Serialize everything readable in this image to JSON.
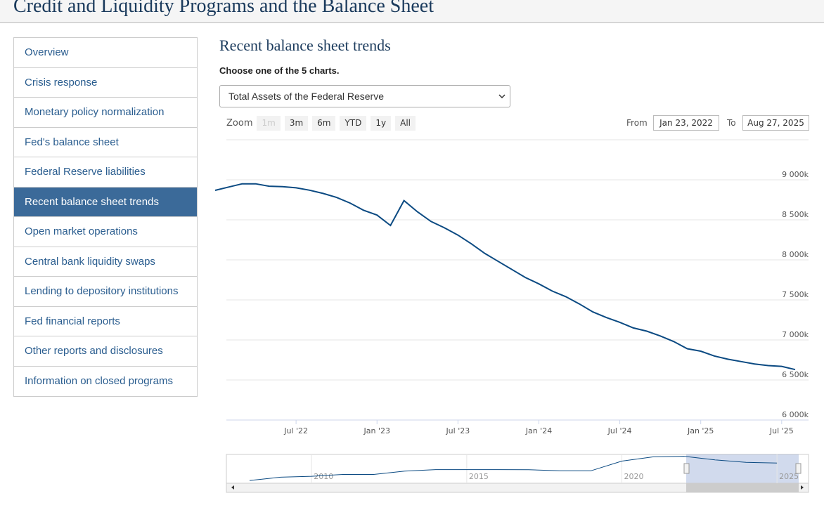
{
  "header": {
    "title": "Credit and Liquidity Programs and the Balance Sheet"
  },
  "nav": {
    "items": [
      "Overview",
      "Crisis response",
      "Monetary policy normalization",
      "Fed's balance sheet",
      "Federal Reserve liabilities",
      "Recent balance sheet trends",
      "Open market operations",
      "Central bank liquidity swaps",
      "Lending to depository institutions",
      "Fed financial reports",
      "Other reports and disclosures",
      "Information on closed programs"
    ],
    "active": 5
  },
  "section": {
    "title": "Recent balance sheet trends",
    "prompt": "Choose one of the 5 charts.",
    "select": "Total Assets of the Federal Reserve"
  },
  "range_selector": {
    "zoom_label": "Zoom",
    "buttons": [
      "1m",
      "3m",
      "6m",
      "YTD",
      "1y",
      "All"
    ],
    "disabled": [
      0
    ],
    "from_label": "From",
    "from": "Jan 23, 2022",
    "to_label": "To",
    "to": "Aug 27, 2025"
  },
  "chart_data": {
    "type": "line",
    "x": [
      "2022-01",
      "2022-02",
      "2022-03",
      "2022-04",
      "2022-05",
      "2022-06",
      "2022-07",
      "2022-08",
      "2022-09",
      "2022-10",
      "2022-11",
      "2022-12",
      "2023-01",
      "2023-02",
      "2023-03",
      "2023-04",
      "2023-05",
      "2023-06",
      "2023-07",
      "2023-08",
      "2023-09",
      "2023-10",
      "2023-11",
      "2023-12",
      "2024-01",
      "2024-02",
      "2024-03",
      "2024-04",
      "2024-05",
      "2024-06",
      "2024-07",
      "2024-08",
      "2024-09",
      "2024-10",
      "2024-11",
      "2024-12",
      "2025-01",
      "2025-02",
      "2025-03",
      "2025-04",
      "2025-05",
      "2025-06",
      "2025-07",
      "2025-08"
    ],
    "series": [
      {
        "color": "#0b4a82",
        "values": [
          8868000,
          8910000,
          8950000,
          8950000,
          8920000,
          8915000,
          8900000,
          8870000,
          8830000,
          8780000,
          8710000,
          8620000,
          8560000,
          8430000,
          8740000,
          8600000,
          8480000,
          8400000,
          8310000,
          8200000,
          8080000,
          7980000,
          7880000,
          7780000,
          7700000,
          7610000,
          7540000,
          7450000,
          7350000,
          7280000,
          7220000,
          7150000,
          7110000,
          7050000,
          6980000,
          6890000,
          6860000,
          6800000,
          6760000,
          6730000,
          6700000,
          6680000,
          6670000,
          6630000
        ]
      }
    ],
    "xlim": [
      "2022-01",
      "2025-08"
    ],
    "xticks": [
      {
        "value": "2022-07",
        "label": "Jul '22"
      },
      {
        "value": "2023-01",
        "label": "Jan '23"
      },
      {
        "value": "2023-07",
        "label": "Jul '23"
      },
      {
        "value": "2024-01",
        "label": "Jan '24"
      },
      {
        "value": "2024-07",
        "label": "Jul '24"
      },
      {
        "value": "2025-01",
        "label": "Jan '25"
      },
      {
        "value": "2025-07",
        "label": "Jul '25"
      }
    ],
    "ylim": [
      6000000,
      9500000
    ],
    "yticks": [
      {
        "value": 6000000,
        "label": "6 000k"
      },
      {
        "value": 6500000,
        "label": "6 500k"
      },
      {
        "value": 7000000,
        "label": "7 000k"
      },
      {
        "value": 7500000,
        "label": "7 500k"
      },
      {
        "value": 8000000,
        "label": "8 000k"
      },
      {
        "value": 8500000,
        "label": "8 500k"
      },
      {
        "value": 9000000,
        "label": "9 000k"
      }
    ],
    "grid": true
  },
  "navigator": {
    "x": [
      2008,
      2009,
      2010,
      2011,
      2012,
      2013,
      2014,
      2015,
      2016,
      2017,
      2018,
      2019,
      2020,
      2021,
      2022,
      2023,
      2024,
      2025
    ],
    "values": [
      900000,
      2000000,
      2300000,
      2900000,
      2900000,
      4000000,
      4500000,
      4500000,
      4500000,
      4450000,
      4100000,
      4100000,
      7300000,
      8700000,
      8900000,
      7700000,
      6900000,
      6650000
    ],
    "xlim": [
      2007.57,
      2025.7
    ],
    "ylim": [
      0,
      9500000
    ],
    "xticks": [
      2010,
      2015,
      2020,
      2025
    ],
    "color": "#0b4a82"
  }
}
